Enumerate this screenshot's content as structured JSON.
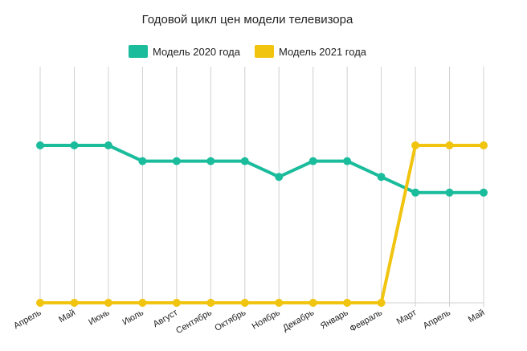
{
  "chart_data": {
    "type": "line",
    "title": "Годовой цикл цен модели телевизора",
    "categories": [
      "Апрель",
      "Май",
      "Июнь",
      "Июль",
      "Август",
      "Сентябрь",
      "Октябрь",
      "Ноябрь",
      "Декабрь",
      "Январь",
      "Февраль",
      "Март",
      "Апрель",
      "Май"
    ],
    "series": [
      {
        "name": "Модель 2020 года",
        "color": "#1abc9c",
        "values": [
          100,
          100,
          100,
          95,
          95,
          95,
          95,
          90,
          95,
          95,
          90,
          85,
          85,
          85
        ]
      },
      {
        "name": "Модель 2021 года",
        "color": "#f1c40f",
        "values": [
          50,
          50,
          50,
          50,
          50,
          50,
          50,
          50,
          50,
          50,
          50,
          100,
          100,
          100
        ]
      }
    ],
    "ylim": [
      50,
      125
    ],
    "grid": "vertical",
    "legend": "top-center",
    "xlabel": "",
    "ylabel": ""
  }
}
